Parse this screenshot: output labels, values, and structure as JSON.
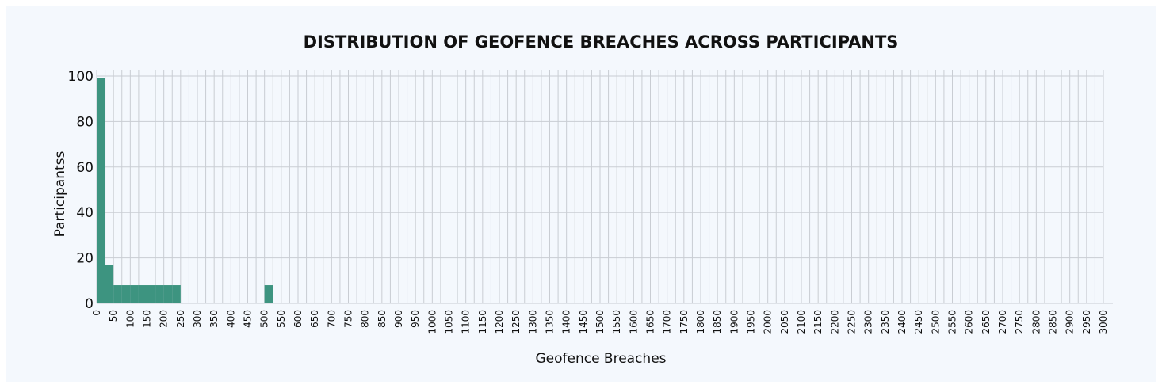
{
  "chart_data": {
    "type": "bar",
    "title": "DISTRIBUTION OF GEOFENCE BREACHES ACROSS PARTICIPANTS",
    "xlabel": "Geofence Breaches",
    "ylabel": "Participantss",
    "xlim": [
      0,
      3000
    ],
    "ylim": [
      0,
      100
    ],
    "bin_width": 25,
    "x_ticks": [
      0,
      50,
      100,
      150,
      200,
      250,
      300,
      350,
      400,
      450,
      500,
      550,
      600,
      650,
      700,
      750,
      800,
      850,
      900,
      950,
      1000,
      1050,
      1100,
      1150,
      1200,
      1250,
      1300,
      1350,
      1400,
      1450,
      1500,
      1550,
      1600,
      1650,
      1700,
      1750,
      1800,
      1850,
      1900,
      1950,
      2000,
      2050,
      2100,
      2150,
      2200,
      2250,
      2300,
      2350,
      2400,
      2450,
      2500,
      2550,
      2600,
      2650,
      2700,
      2750,
      2800,
      2850,
      2900,
      2950,
      3000
    ],
    "y_ticks": [
      0,
      20,
      40,
      60,
      80,
      100
    ],
    "grid": true,
    "bins": [
      {
        "start": 0,
        "end": 25,
        "value": 99
      },
      {
        "start": 25,
        "end": 50,
        "value": 17
      },
      {
        "start": 50,
        "end": 75,
        "value": 8
      },
      {
        "start": 75,
        "end": 100,
        "value": 8
      },
      {
        "start": 100,
        "end": 125,
        "value": 8
      },
      {
        "start": 125,
        "end": 150,
        "value": 8
      },
      {
        "start": 150,
        "end": 175,
        "value": 8
      },
      {
        "start": 175,
        "end": 200,
        "value": 8
      },
      {
        "start": 200,
        "end": 225,
        "value": 8
      },
      {
        "start": 225,
        "end": 250,
        "value": 8
      },
      {
        "start": 500,
        "end": 525,
        "value": 8
      }
    ],
    "colors": {
      "bar": "#3d9480",
      "background": "#f4f8fd",
      "grid": "#c9cdd3"
    }
  }
}
